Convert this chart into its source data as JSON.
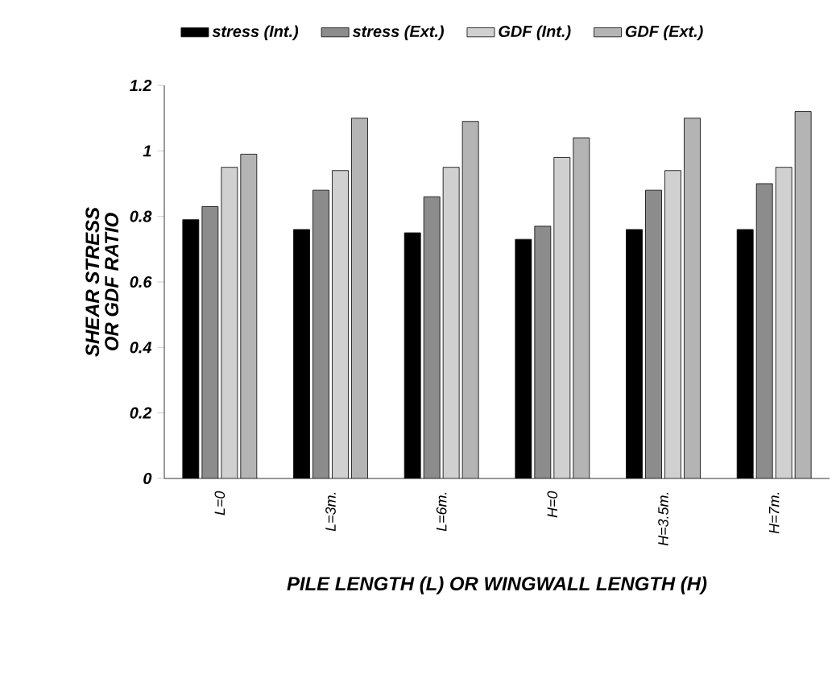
{
  "chart_data": {
    "type": "bar",
    "xlabel": "PILE LENGTH (L) OR WINGWALL LENGTH (H)",
    "ylabel": "SHEAR STRESS OR GDF RATIO",
    "categories": [
      "L=0",
      "L=3m.",
      "L=6m.",
      "H=0",
      "H=3.5m.",
      "H=7m."
    ],
    "series": [
      {
        "name": "stress (Int.)",
        "color": "#000000",
        "values": [
          0.79,
          0.76,
          0.75,
          0.73,
          0.76,
          0.76
        ]
      },
      {
        "name": "stress (Ext.)",
        "color": "#8c8c8c",
        "values": [
          0.83,
          0.88,
          0.86,
          0.77,
          0.88,
          0.9
        ]
      },
      {
        "name": "GDF (Int.)",
        "color": "#d0d0d0",
        "values": [
          0.95,
          0.94,
          0.95,
          0.98,
          0.94,
          0.95
        ]
      },
      {
        "name": "GDF (Ext.)",
        "color": "#b4b4b4",
        "values": [
          0.99,
          1.1,
          1.09,
          1.04,
          1.1,
          1.12
        ]
      }
    ],
    "ylim": [
      0,
      1.2
    ],
    "yticks": [
      0,
      0.2,
      0.4,
      0.6,
      0.8,
      1,
      1.2
    ],
    "legend": "top"
  }
}
